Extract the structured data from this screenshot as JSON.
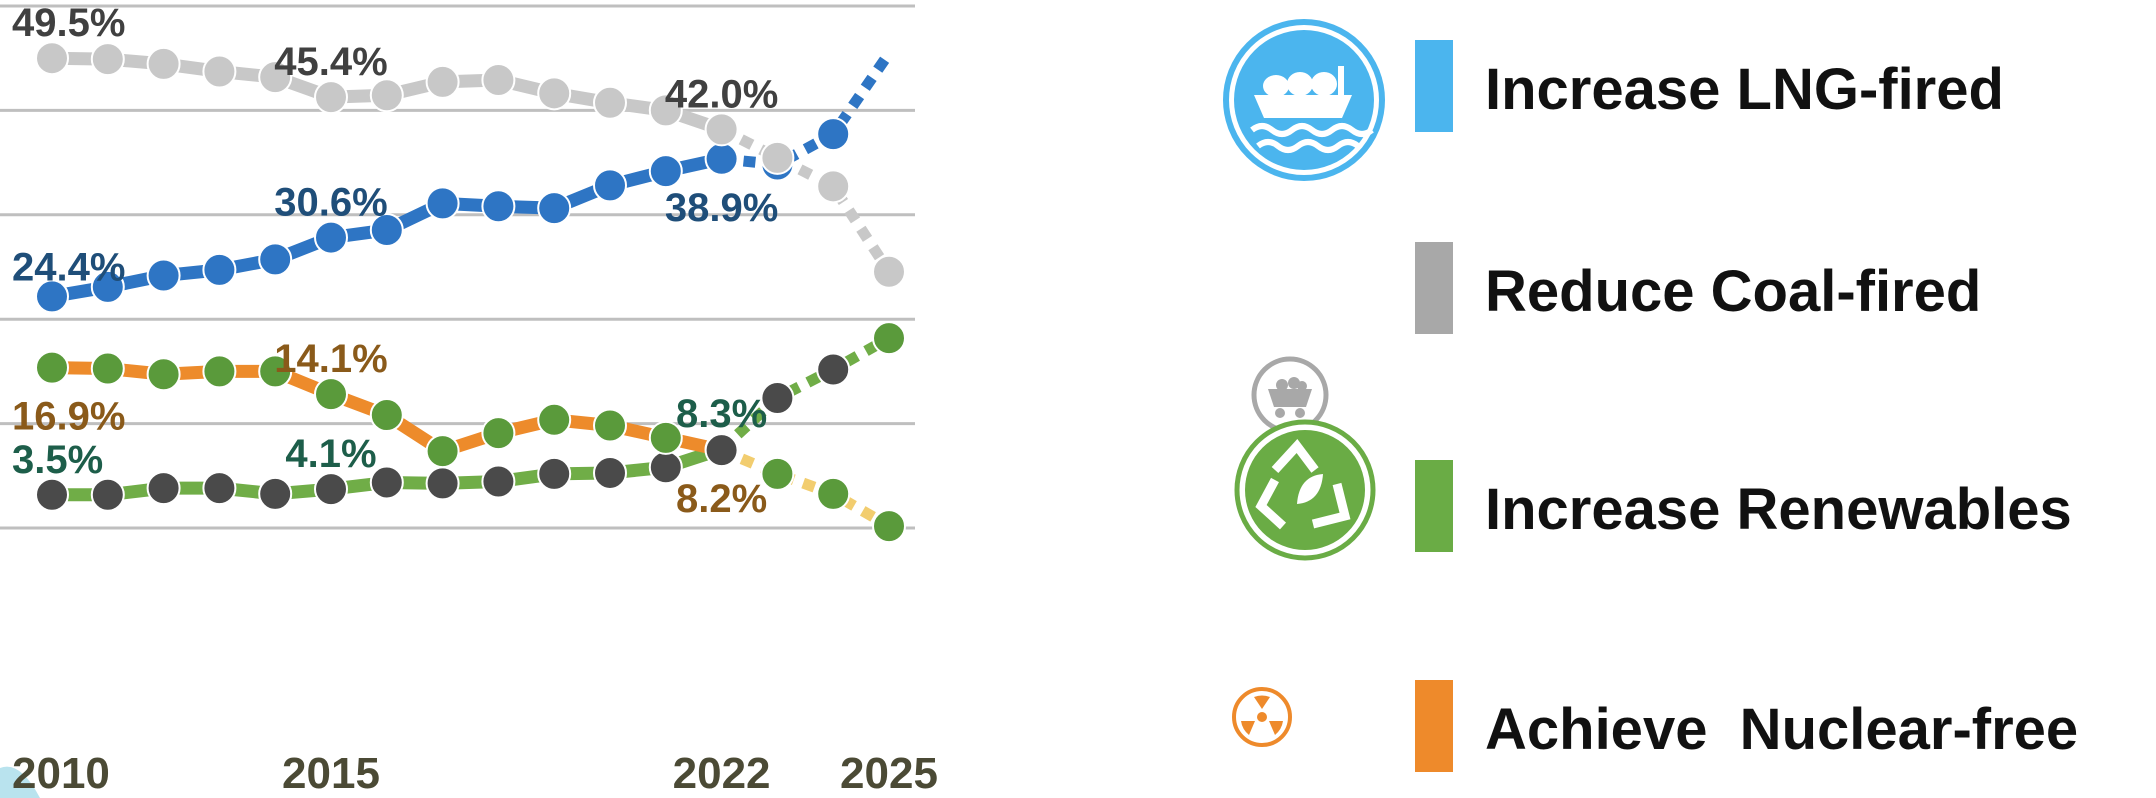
{
  "chart_data": {
    "type": "line",
    "x": [
      2010,
      2011,
      2012,
      2013,
      2014,
      2015,
      2016,
      2017,
      2018,
      2019,
      2020,
      2021,
      2022,
      2023,
      2024,
      2025
    ],
    "x_tick_labels": [
      "2010",
      "2015",
      "2022",
      "2025"
    ],
    "x_tick_values": [
      2010,
      2015,
      2022,
      2025
    ],
    "ylim": [
      0,
      55
    ],
    "grid": true,
    "legend_position": "right",
    "series": [
      {
        "name": "Increase LNG-fired",
        "color": "#2e75c4",
        "forecast_color": "#2e75c4",
        "values": [
          24.4,
          25.4,
          26.6,
          27.2,
          28.3,
          30.6,
          31.4,
          34.2,
          33.9,
          33.7,
          36.1,
          37.6,
          38.9,
          38.3,
          41.5,
          50.0
        ],
        "actual_until_index": 12,
        "labels": [
          {
            "index": 0,
            "text": "24.4%",
            "pos": "above-right"
          },
          {
            "index": 5,
            "text": "30.6%",
            "pos": "above"
          },
          {
            "index": 12,
            "text": "38.9%",
            "pos": "below"
          }
        ]
      },
      {
        "name": "Reduce Coal-fired",
        "color": "#c8c8c8",
        "forecast_color": "#c8c8c8",
        "values": [
          49.5,
          49.4,
          48.9,
          48.1,
          47.5,
          45.4,
          45.6,
          47.0,
          47.2,
          45.8,
          44.8,
          44.0,
          42.0,
          39.0,
          36.0,
          27.0
        ],
        "actual_until_index": 12,
        "labels": [
          {
            "index": 0,
            "text": "49.5%",
            "pos": "above"
          },
          {
            "index": 5,
            "text": "45.4%",
            "pos": "above"
          },
          {
            "index": 12,
            "text": "42.0%",
            "pos": "above"
          }
        ]
      },
      {
        "name": "Increase Renewables",
        "color": "#70ad47",
        "forecast_color": "#70ad47",
        "values": [
          3.5,
          3.5,
          4.2,
          4.2,
          3.6,
          4.1,
          4.8,
          4.7,
          4.9,
          5.7,
          5.8,
          6.4,
          8.3,
          13.7,
          16.7,
          20.0
        ],
        "actual_until_index": 12,
        "labels": [
          {
            "index": 0,
            "text": "3.5%",
            "pos": "above"
          },
          {
            "index": 5,
            "text": "4.1%",
            "pos": "above"
          },
          {
            "index": 12,
            "text": "8.3%",
            "pos": "above"
          }
        ]
      },
      {
        "name": "Achieve  Nuclear-free",
        "color": "#ed8b2b",
        "forecast_color": "#f2cd6f",
        "values": [
          16.9,
          16.8,
          16.2,
          16.5,
          16.5,
          14.1,
          11.9,
          8.1,
          10.0,
          11.4,
          10.8,
          9.5,
          8.2,
          5.7,
          3.6,
          0.2
        ],
        "actual_until_index": 12,
        "labels": [
          {
            "index": 0,
            "text": "16.9%",
            "pos": "below"
          },
          {
            "index": 5,
            "text": "14.1%",
            "pos": "above"
          },
          {
            "index": 12,
            "text": "8.2%",
            "pos": "below"
          }
        ]
      }
    ]
  },
  "legend": {
    "items": [
      {
        "label": "Increase LNG-fired",
        "color": "#4bb5ee",
        "icon": "lng-ship-icon"
      },
      {
        "label": "Reduce Coal-fired",
        "color": "#a8a8a8",
        "icon": "coal-cart-icon"
      },
      {
        "label": "Increase Renewables",
        "color": "#6aac45",
        "icon": "recycle-leaf-icon"
      },
      {
        "label": "Achieve  Nuclear-free",
        "color": "#ee8a2b",
        "icon": "radiation-icon"
      }
    ]
  },
  "colors": {
    "label_lng": "#1f4e79",
    "label_coal": "#404040",
    "label_renew": "#1d5e4a",
    "label_nuclear": "#8a5a1a",
    "x_tick": "#4b4a35",
    "grid": "#bfbfbf",
    "marker_dark": "#4a4a4a",
    "marker_lng": "#2e75c4",
    "marker_coal": "#c8c8c8",
    "marker_nuclear": "#5a9a3b"
  }
}
